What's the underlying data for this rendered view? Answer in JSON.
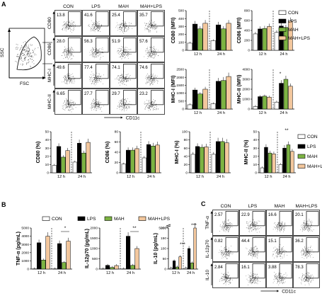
{
  "colors": {
    "CON": "#ffffff",
    "LPS": "#000000",
    "MAH": "#7cb342",
    "MAH+LPS": "#f3c79d"
  },
  "legend": [
    "CON",
    "LPS",
    "MAH",
    "MAH+LPS"
  ],
  "panelA": {
    "label": "A",
    "gating": {
      "ssc": "SSC",
      "fsc": "FSC"
    },
    "columns": [
      "CON",
      "LPS",
      "MAH",
      "MAH+LPS"
    ],
    "rows": [
      {
        "marker": "CD80",
        "pct": [
          "13.8",
          "41.6",
          "25.4",
          "35.7"
        ]
      },
      {
        "marker": "CD86",
        "pct": [
          "28.0",
          "56.3",
          "51.9",
          "57.6"
        ]
      },
      {
        "marker": "MHC-I",
        "pct": [
          "49.6",
          "77.4",
          "74.1",
          "74.6"
        ]
      },
      {
        "marker": "MHC-II",
        "pct": [
          "6.65",
          "27.7",
          "29.7",
          "23.2"
        ]
      }
    ],
    "xmarker": "CD11c"
  },
  "panelB": {
    "label": "B",
    "legend": [
      "CON",
      "LPS",
      "MAH",
      "MAH+LPS"
    ],
    "charts": [
      {
        "ylabel": "TNF-α (pg/mL)",
        "ticks": [
          "0",
          "1000",
          "2000",
          "3000",
          "4000",
          "5000"
        ],
        "star": "*"
      },
      {
        "ylabel": "IL-12p70 (pg/mL)",
        "ticks": [
          "0",
          "500",
          "1000",
          "1500",
          "2000"
        ],
        "star": "**"
      },
      {
        "ylabel": "IL-10 (pg/mL)",
        "ticks": [
          "0",
          "50",
          "100",
          "150",
          "200",
          "5000"
        ],
        "star": "***"
      }
    ],
    "times": [
      "12 h",
      "24 h"
    ]
  },
  "panelC": {
    "label": "C",
    "columns": [
      "CON",
      "LPS",
      "MAH",
      "MAH+LPS"
    ],
    "rows": [
      {
        "marker": "TNF-α",
        "pct": [
          "2.57",
          "22.9",
          "16.6",
          "20.1"
        ]
      },
      {
        "marker": "IL-12p70",
        "pct": [
          "0.82",
          "44.4",
          "15.1",
          "36.2"
        ]
      },
      {
        "marker": "IL-10",
        "pct": [
          "2.84",
          "16.1",
          "3.88",
          "78.3"
        ]
      }
    ],
    "xmarker": "CD11c"
  },
  "chart_data": [
    {
      "type": "bar",
      "ylabel": "CD80 (MFI)",
      "x": [
        "12 h",
        "24 h"
      ],
      "yticks": [
        "0",
        "100",
        "200",
        "300",
        "400",
        "500"
      ],
      "series": [
        {
          "name": "CON",
          "values": [
            90,
            120
          ]
        },
        {
          "name": "LPS",
          "values": [
            330,
            320
          ]
        },
        {
          "name": "MAH",
          "values": [
            270,
            270
          ]
        },
        {
          "name": "MAH+LPS",
          "values": [
            340,
            340
          ]
        }
      ]
    },
    {
      "type": "bar",
      "ylabel": "CD86 (MFI)",
      "x": [
        "12 h",
        "24 h"
      ],
      "yticks": [
        "0",
        "200",
        "400",
        "600",
        "800"
      ],
      "series": [
        {
          "name": "CON",
          "values": [
            330,
            360
          ]
        },
        {
          "name": "LPS",
          "values": [
            430,
            490
          ]
        },
        {
          "name": "MAH",
          "values": [
            440,
            460
          ]
        },
        {
          "name": "MAH+LPS",
          "values": [
            480,
            590
          ]
        }
      ]
    },
    {
      "type": "bar",
      "ylabel": "MHC-I (MFI)",
      "x": [
        "12 h",
        "24 h"
      ],
      "yticks": [
        "0",
        "500",
        "1000",
        "1500",
        "2000",
        "2500"
      ],
      "series": [
        {
          "name": "CON",
          "values": [
            270,
            330
          ]
        },
        {
          "name": "LPS",
          "values": [
            1200,
            1750
          ]
        },
        {
          "name": "MAH",
          "values": [
            950,
            1800
          ]
        },
        {
          "name": "MAH+LPS",
          "values": [
            1250,
            2050
          ]
        }
      ]
    },
    {
      "type": "bar",
      "ylabel": "MHC-II (MFI)",
      "x": [
        "12 h",
        "24 h"
      ],
      "yticks": [
        "0",
        "1000",
        "2000",
        "3000",
        "4000"
      ],
      "series": [
        {
          "name": "CON",
          "values": [
            250,
            700
          ]
        },
        {
          "name": "LPS",
          "values": [
            1250,
            2600
          ]
        },
        {
          "name": "MAH",
          "values": [
            1300,
            3000
          ]
        },
        {
          "name": "MAH+LPS",
          "values": [
            1200,
            2300
          ]
        }
      ]
    },
    {
      "type": "bar",
      "ylabel": "CD80 (%)",
      "x": [
        "12 h",
        "24 h"
      ],
      "yticks": [
        "0",
        "10",
        "20",
        "30",
        "40",
        "50"
      ],
      "series": [
        {
          "name": "CON",
          "values": [
            9,
            13
          ]
        },
        {
          "name": "LPS",
          "values": [
            32,
            36
          ]
        },
        {
          "name": "MAH",
          "values": [
            19,
            24
          ]
        },
        {
          "name": "MAH+LPS",
          "values": [
            27,
            37
          ]
        }
      ]
    },
    {
      "type": "bar",
      "ylabel": "CD86 (%)",
      "x": [
        "12 h",
        "24 h"
      ],
      "yticks": [
        "0",
        "20",
        "40",
        "60",
        "80"
      ],
      "series": [
        {
          "name": "CON",
          "values": [
            17,
            29
          ]
        },
        {
          "name": "LPS",
          "values": [
            44,
            55
          ]
        },
        {
          "name": "MAH",
          "values": [
            44,
            52
          ]
        },
        {
          "name": "MAH+LPS",
          "values": [
            47,
            54
          ]
        }
      ]
    },
    {
      "type": "bar",
      "ylabel": "MHC-I (%)",
      "x": [
        "12 h",
        "24 h"
      ],
      "yticks": [
        "0",
        "20",
        "40",
        "60",
        "80",
        "100"
      ],
      "series": [
        {
          "name": "CON",
          "values": [
            45,
            45
          ]
        },
        {
          "name": "LPS",
          "values": [
            64,
            76
          ]
        },
        {
          "name": "MAH",
          "values": [
            62,
            76
          ]
        },
        {
          "name": "MAH+LPS",
          "values": [
            63,
            73
          ]
        }
      ]
    },
    {
      "type": "bar",
      "ylabel": "MHC-II (%)",
      "x": [
        "12 h",
        "24 h"
      ],
      "yticks": [
        "0",
        "10",
        "20",
        "30",
        "40",
        "50"
      ],
      "series": [
        {
          "name": "CON",
          "values": [
            6,
            10
          ]
        },
        {
          "name": "LPS",
          "values": [
            31,
            30
          ]
        },
        {
          "name": "MAH",
          "values": [
            24,
            34
          ]
        },
        {
          "name": "MAH+LPS",
          "values": [
            23,
            26
          ]
        }
      ]
    },
    {
      "type": "bar",
      "ylabel": "TNF-α (pg/mL)",
      "x": [
        "12 h",
        "24 h"
      ],
      "yticks": [
        "0",
        "1000",
        "2000",
        "3000",
        "4000",
        "5000"
      ],
      "series": [
        {
          "name": "CON",
          "values": [
            30,
            30
          ]
        },
        {
          "name": "LPS",
          "values": [
            3200,
            3100
          ]
        },
        {
          "name": "MAH",
          "values": [
            1100,
            800
          ]
        },
        {
          "name": "MAH+LPS",
          "values": [
            4000,
            3400
          ]
        }
      ]
    },
    {
      "type": "bar",
      "ylabel": "IL-12p70 (pg/mL)",
      "x": [
        "12 h",
        "24 h"
      ],
      "yticks": [
        "0",
        "500",
        "1000",
        "1500",
        "2000"
      ],
      "series": [
        {
          "name": "CON",
          "values": [
            10,
            10
          ]
        },
        {
          "name": "LPS",
          "values": [
            180,
            1600
          ]
        },
        {
          "name": "MAH",
          "values": [
            80,
            180
          ]
        },
        {
          "name": "MAH+LPS",
          "values": [
            170,
            1000
          ]
        }
      ]
    },
    {
      "type": "bar",
      "ylabel": "IL-10 (pg/mL)",
      "x": [
        "12 h",
        "24 h"
      ],
      "yticks": [
        "0",
        "50",
        "100",
        "150",
        "200",
        "5000"
      ],
      "series": [
        {
          "name": "CON",
          "values": [
            5,
            5
          ]
        },
        {
          "name": "LPS",
          "values": [
            40,
            100
          ]
        },
        {
          "name": "MAH",
          "values": [
            10,
            30
          ]
        },
        {
          "name": "MAH+LPS",
          "values": [
            60,
            220
          ]
        }
      ]
    }
  ]
}
